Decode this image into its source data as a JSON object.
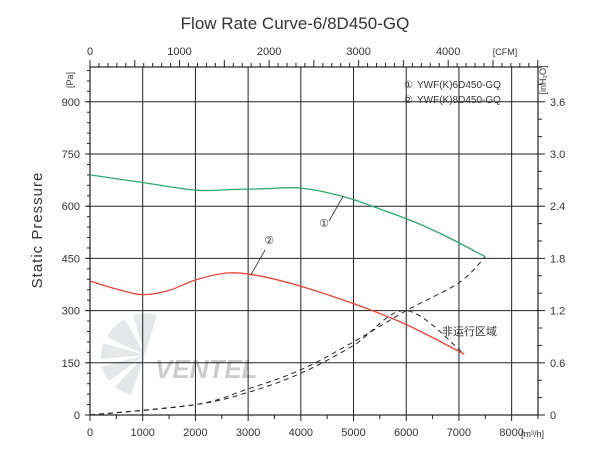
{
  "chart_data": {
    "type": "line",
    "title": "Flow Rate Curve-6/8D450-GQ",
    "ylabel": "Static Pressure",
    "axes": {
      "bottom": {
        "unit": "[m³/h]",
        "range": [
          0,
          8500
        ],
        "ticks": [
          "0",
          "1000",
          "2000",
          "3000",
          "4000",
          "5000",
          "6000",
          "7000",
          "8000"
        ]
      },
      "top": {
        "unit": "[CFM]",
        "range": [
          0,
          5003
        ],
        "ticks": [
          "0",
          "1000",
          "2000",
          "3000",
          "4000"
        ]
      },
      "left": {
        "unit": "[Pa]",
        "range": [
          0,
          1000
        ],
        "ticks": [
          "0",
          "150",
          "300",
          "450",
          "600",
          "750",
          "900"
        ]
      },
      "right": {
        "unit": "[inH₂O]",
        "range": [
          0,
          4.0
        ],
        "ticks": [
          "0",
          "0.6",
          "1.2",
          "1.8",
          "2.4",
          "3.0",
          "3.6"
        ]
      }
    },
    "legend": {
      "position": "top-right",
      "entries": [
        {
          "marker": "①",
          "label": "YWF(K)6D450-GQ"
        },
        {
          "marker": "②",
          "label": "YWF(K)8D450-GQ"
        }
      ]
    },
    "series": [
      {
        "marker": "①",
        "color": "#2ea86e",
        "x": [
          0,
          1000,
          2000,
          2700,
          3300,
          4000,
          4800,
          5500,
          6200,
          6800,
          7500
        ],
        "y": [
          690,
          668,
          646,
          648,
          650,
          652,
          628,
          592,
          552,
          510,
          455
        ]
      },
      {
        "marker": "②",
        "color": "#e8433b",
        "x": [
          0,
          500,
          1000,
          1500,
          2000,
          2600,
          3200,
          4000,
          5000,
          6000,
          7100
        ],
        "y": [
          385,
          362,
          346,
          358,
          388,
          408,
          400,
          370,
          320,
          260,
          175
        ]
      }
    ],
    "boundary_curves": [
      {
        "x": [
          0,
          2000,
          3000,
          4000,
          5000,
          6000,
          7100
        ],
        "y": [
          0,
          30,
          65,
          120,
          200,
          300,
          175
        ],
        "style": "dashed"
      },
      {
        "x": [
          0,
          2000,
          3000,
          4000,
          5000,
          6000,
          7000,
          7500
        ],
        "y": [
          0,
          30,
          75,
          130,
          210,
          300,
          380,
          455
        ],
        "style": "dashed"
      }
    ],
    "annotations": [
      {
        "text": "非运行区域",
        "x": 7200,
        "y": 230
      },
      {
        "text": "①",
        "x": 4440,
        "y": 540
      },
      {
        "text": "②",
        "x": 3400,
        "y": 492
      }
    ],
    "grid": true,
    "watermark": "VENTEL"
  }
}
